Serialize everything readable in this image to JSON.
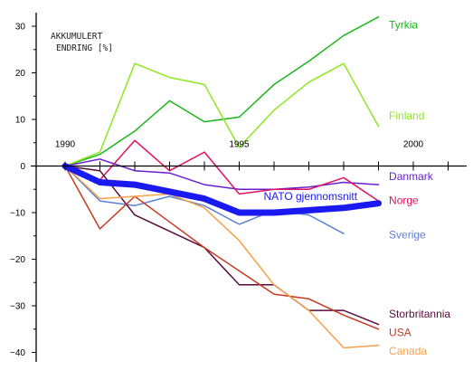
{
  "chart_data": {
    "type": "line",
    "title": "",
    "annotation_lines": [
      "AKKUMULERT",
      "ENDRING [%]"
    ],
    "xlabel": "",
    "ylabel": "",
    "xlim": [
      1990,
      2003
    ],
    "ylim": [
      -42,
      33
    ],
    "x_tick_labels": [
      "1990",
      "1995",
      "2000"
    ],
    "x_tick_values": [
      1990,
      1995,
      2000
    ],
    "y_ticks": [
      30,
      20,
      10,
      0,
      -10,
      -20,
      -30,
      -40
    ],
    "y_tick_labels": [
      "30",
      "20",
      "10",
      "0",
      "−10",
      "−20",
      "−30",
      "−40"
    ],
    "grid": false,
    "series": [
      {
        "name": "Tyrkia",
        "color": "#1cb51c",
        "width": 1.5,
        "x": [
          1990,
          1991,
          1992,
          1993,
          1994,
          1995,
          1996,
          1997,
          1998,
          1999
        ],
        "y": [
          0,
          2.5,
          7.5,
          14,
          9.5,
          10.5,
          17.5,
          22.5,
          28,
          32
        ]
      },
      {
        "name": "Finland",
        "color": "#8de81f",
        "width": 1.5,
        "x": [
          1990,
          1991,
          1992,
          1993,
          1994,
          1995,
          1996,
          1997,
          1998,
          1999
        ],
        "y": [
          0,
          3,
          22,
          19,
          17.5,
          4,
          12,
          18,
          22,
          8.5
        ]
      },
      {
        "name": "Danmark",
        "color": "#6a1fd1",
        "width": 1.5,
        "x": [
          1990,
          1991,
          1992,
          1993,
          1994,
          1995,
          1996,
          1997,
          1998,
          1999
        ],
        "y": [
          0,
          1.5,
          -1,
          -1.5,
          -4,
          -5,
          -5,
          -4.5,
          -3.5,
          -4
        ]
      },
      {
        "name": "Norge",
        "color": "#e0115f",
        "width": 1.5,
        "x": [
          1990,
          1991,
          1992,
          1993,
          1994,
          1995,
          1996,
          1997,
          1998,
          1999
        ],
        "y": [
          0,
          -3,
          5.5,
          -1,
          3,
          -6,
          -5,
          -5,
          -2.5,
          -7.5
        ]
      },
      {
        "name": "Sverige",
        "color": "#5a7fd6",
        "width": 1.5,
        "x": [
          1990,
          1991,
          1992,
          1993,
          1994,
          1995,
          1996,
          1997,
          1998
        ],
        "y": [
          0,
          -7.5,
          -8.5,
          -6.5,
          -8.5,
          -12.5,
          -9.5,
          -10.5,
          -14.5
        ]
      },
      {
        "name": "Storbritannia",
        "color": "#5a0a3c",
        "width": 1.5,
        "x": [
          1990,
          1991,
          1992,
          1993,
          1994,
          1995,
          1996,
          1997,
          1998,
          1999
        ],
        "y": [
          0,
          -1,
          -10.5,
          -14,
          -17.5,
          -25.5,
          -25.5,
          -31,
          -31,
          -34
        ]
      },
      {
        "name": "USA",
        "color": "#c63a1f",
        "width": 1.5,
        "x": [
          1990,
          1991,
          1992,
          1993,
          1994,
          1995,
          1996,
          1997,
          1998,
          1999
        ],
        "y": [
          0,
          -13.5,
          -6.5,
          -12,
          -17.5,
          -22.5,
          -27.5,
          -28.5,
          -32,
          -35
        ]
      },
      {
        "name": "Canada",
        "color": "#f5a04a",
        "width": 1.5,
        "x": [
          1990,
          1991,
          1992,
          1993,
          1994,
          1995,
          1996,
          1997,
          1998,
          1999
        ],
        "y": [
          0,
          -7,
          -6.5,
          -6,
          -9,
          -16,
          -25.5,
          -31,
          -39,
          -38.5
        ]
      },
      {
        "name": "NATO gjennomsnitt",
        "color": "#1a1af0",
        "width": 7,
        "x": [
          1990,
          1991,
          1992,
          1993,
          1994,
          1995,
          1996,
          1997,
          1998,
          1999
        ],
        "y": [
          0,
          -3.5,
          -4,
          -5.5,
          -7,
          -10,
          -10,
          -9.5,
          -9,
          -8
        ]
      }
    ],
    "labels": [
      {
        "series": "Tyrkia",
        "text": "Tyrkia",
        "x": 1999.3,
        "y": 29.5
      },
      {
        "series": "Finland",
        "text": "Finland",
        "x": 1999.3,
        "y": 10
      },
      {
        "series": "Danmark",
        "text": "Danmark",
        "x": 1999.3,
        "y": -3
      },
      {
        "series": "Norge",
        "text": "Norge",
        "x": 1999.3,
        "y": -8.2
      },
      {
        "series": "NATO gjennomsnitt",
        "text": "NATO gjennomsnitt",
        "x": 1995.7,
        "y": -7.3
      },
      {
        "series": "Sverige",
        "text": "Sverige",
        "x": 1999.3,
        "y": -15.5
      },
      {
        "series": "Storbritannia",
        "text": "Storbritannia",
        "x": 1999.3,
        "y": -32.5
      },
      {
        "series": "USA",
        "text": "USA",
        "x": 1999.3,
        "y": -36.5
      },
      {
        "series": "Canada",
        "text": "Canada",
        "x": 1999.3,
        "y": -40.5
      }
    ]
  }
}
